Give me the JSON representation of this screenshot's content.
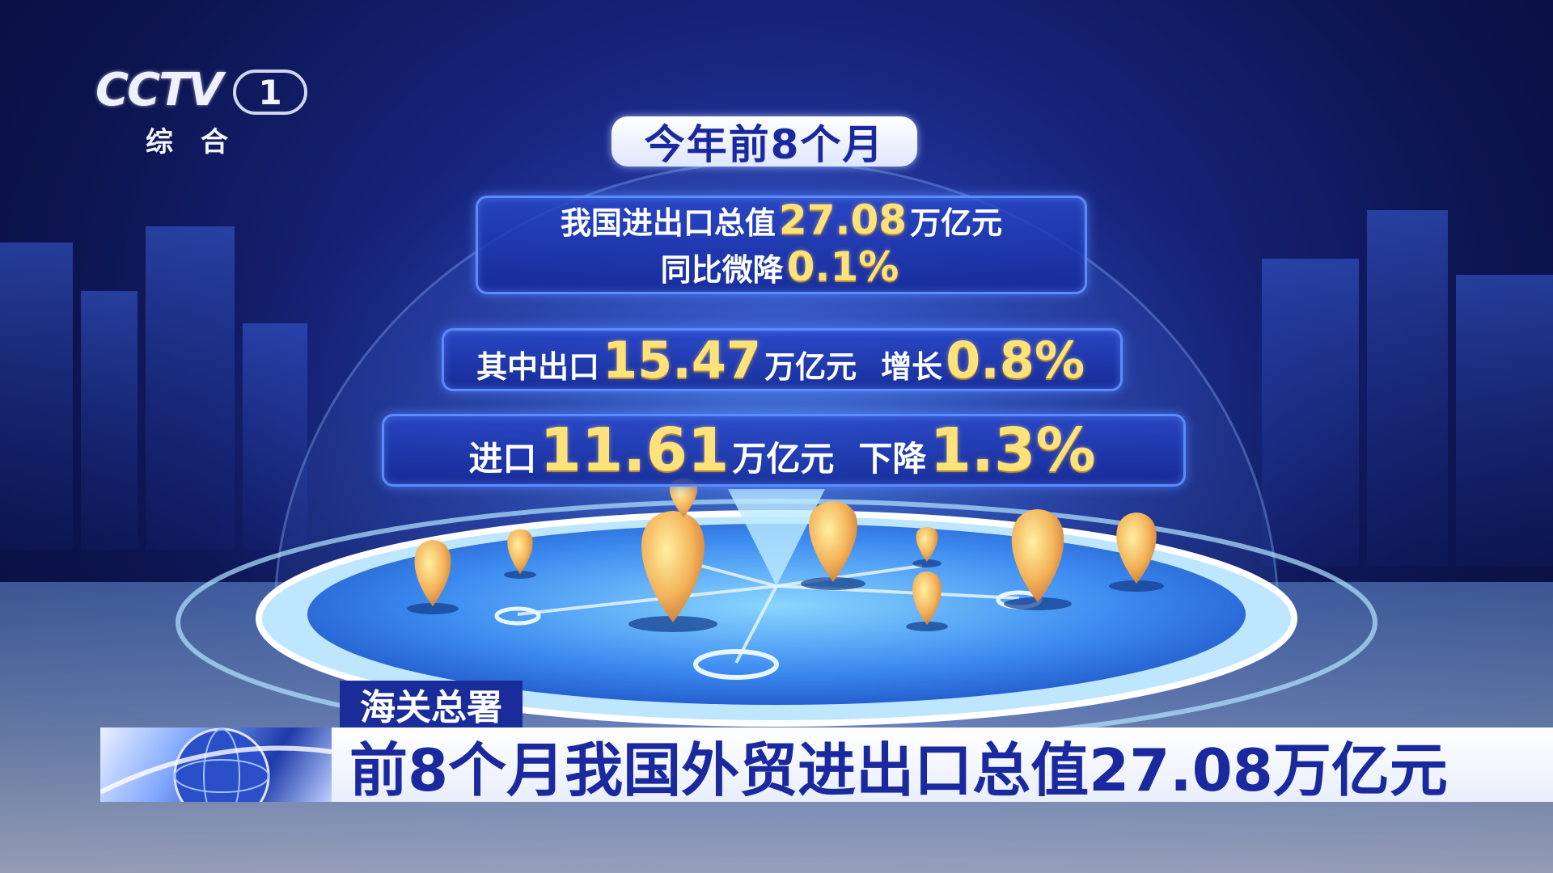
{
  "logo": {
    "brand": "CCTV",
    "channel": "1",
    "sub": "综合"
  },
  "headline": "今年前8个月",
  "box1": {
    "l1_pre": "我国进出口总值",
    "l1_num": "27.08",
    "l1_post": "万亿元",
    "l2_pre": "同比微降",
    "l2_num": "0.1%"
  },
  "box2": {
    "pre": "其中出口",
    "num": "15.47",
    "mid": "万亿元",
    "rise_label": "增长",
    "rise_num": "0.8%"
  },
  "box3": {
    "pre": "进口",
    "num": "11.61",
    "mid": "万亿元",
    "drop_label": "下降",
    "drop_num": "1.3%"
  },
  "source": "海关总署",
  "ticker": "前8个月我国外贸进出口总值27.08万亿元",
  "colors": {
    "accent_gold": "#ffe27a",
    "deep_blue": "#1a2a9e",
    "box_border": "#5b8cff"
  }
}
